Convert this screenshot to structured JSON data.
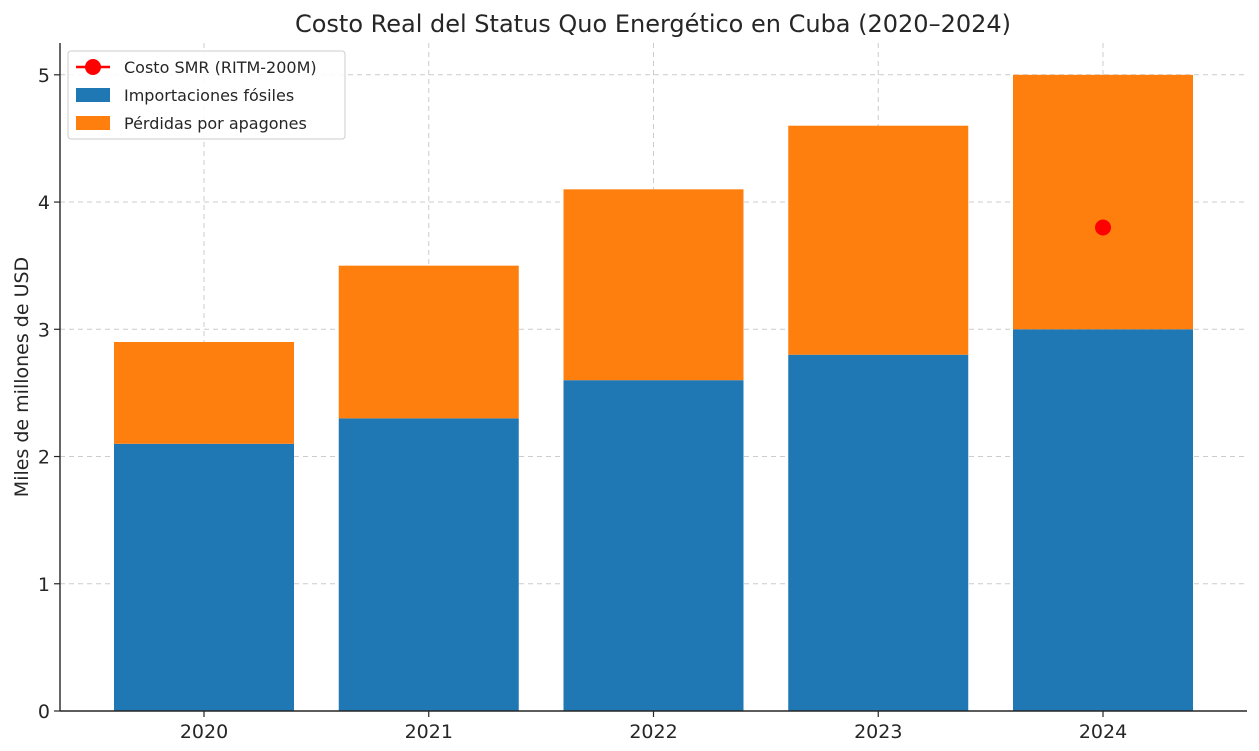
{
  "chart_data": {
    "type": "bar",
    "stacked": true,
    "title": "Costo Real del Status Quo Energético en Cuba (2020–2024)",
    "xlabel": "",
    "ylabel": "Miles de millones de USD",
    "categories": [
      "2020",
      "2021",
      "2022",
      "2023",
      "2024"
    ],
    "ylim": [
      0,
      5.25
    ],
    "yticks": [
      0,
      1,
      2,
      3,
      4,
      5
    ],
    "grid": true,
    "legend_position": "top-left",
    "series": [
      {
        "name": "Importaciones fósiles",
        "color": "#1f77b4",
        "values": [
          2.1,
          2.3,
          2.6,
          2.8,
          3.0
        ]
      },
      {
        "name": "Pérdidas por apagones",
        "color": "#ff7f0e",
        "values": [
          0.8,
          1.2,
          1.5,
          1.8,
          2.0
        ]
      }
    ],
    "markers": [
      {
        "name": "Costo SMR (RITM-200M)",
        "color": "#ff0000",
        "x": "2024",
        "y": 3.8
      }
    ]
  }
}
